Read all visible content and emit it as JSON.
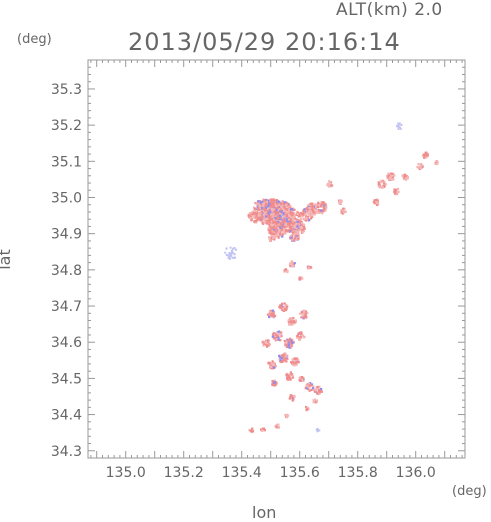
{
  "header": {
    "altitude": "ALT(km) 2.0",
    "timestamp": "2013/05/29 20:16:14"
  },
  "chart_data": {
    "type": "scatter",
    "title": "2013/05/29 20:16:14",
    "xlabel": "lon",
    "ylabel": "lat",
    "x_unit": "(deg)",
    "y_unit": "(deg)",
    "xlim": [
      134.87,
      136.17
    ],
    "ylim": [
      34.28,
      35.38
    ],
    "x_ticks": [
      "135.0",
      "135.2",
      "135.4",
      "135.6",
      "135.8",
      "136.0"
    ],
    "y_ticks": [
      "34.3",
      "34.4",
      "34.5",
      "34.6",
      "34.7",
      "34.8",
      "34.9",
      "35.0",
      "35.1",
      "35.2",
      "35.3"
    ],
    "grid": false,
    "colors": {
      "positive": "#f08c8c",
      "positive_light": "#f4b8b8",
      "negative": "#8c8cf0",
      "negative_light": "#c4c4f4"
    },
    "series": [
      {
        "values": [
          [
            135.5,
            34.96,
            14,
            4
          ],
          [
            135.53,
            34.955,
            14,
            3
          ],
          [
            135.47,
            34.97,
            10,
            3
          ],
          [
            135.56,
            34.94,
            12,
            3
          ],
          [
            135.44,
            34.95,
            6,
            1
          ],
          [
            135.52,
            34.915,
            9,
            2
          ],
          [
            135.59,
            34.92,
            7,
            2
          ],
          [
            135.62,
            34.955,
            6,
            2
          ],
          [
            135.64,
            34.97,
            6,
            1
          ],
          [
            135.67,
            34.975,
            6,
            1
          ],
          [
            135.58,
            34.895,
            5,
            1
          ],
          [
            135.5,
            34.89,
            3,
            1
          ],
          [
            135.745,
            34.965,
            3,
            0
          ],
          [
            135.735,
            34.99,
            2,
            0
          ],
          [
            135.7,
            35.04,
            3,
            0
          ],
          [
            135.86,
            34.99,
            3,
            0
          ],
          [
            135.88,
            35.04,
            4,
            0
          ],
          [
            135.91,
            35.06,
            4,
            0
          ],
          [
            135.93,
            35.02,
            3,
            0
          ],
          [
            135.96,
            35.06,
            3,
            0
          ],
          [
            136.01,
            35.09,
            3,
            0
          ],
          [
            136.03,
            35.12,
            3,
            0
          ],
          [
            136.07,
            35.1,
            2,
            0
          ],
          [
            135.57,
            34.82,
            3,
            1
          ],
          [
            135.6,
            34.78,
            2,
            1
          ],
          [
            135.55,
            34.8,
            2,
            0
          ],
          [
            135.63,
            34.81,
            2,
            1
          ],
          [
            135.54,
            34.7,
            4,
            2
          ],
          [
            135.5,
            34.68,
            4,
            2
          ],
          [
            135.57,
            34.66,
            4,
            2
          ],
          [
            135.61,
            34.68,
            4,
            2
          ],
          [
            135.52,
            34.62,
            5,
            3
          ],
          [
            135.56,
            34.6,
            5,
            3
          ],
          [
            135.48,
            34.6,
            4,
            2
          ],
          [
            135.6,
            34.62,
            4,
            2
          ],
          [
            135.54,
            34.56,
            5,
            3
          ],
          [
            135.5,
            34.54,
            4,
            2
          ],
          [
            135.58,
            34.55,
            4,
            2
          ],
          [
            135.56,
            34.51,
            4,
            2
          ],
          [
            135.51,
            34.49,
            3,
            2
          ],
          [
            135.6,
            34.5,
            3,
            2
          ],
          [
            135.63,
            34.48,
            4,
            2
          ],
          [
            135.66,
            34.47,
            4,
            2
          ],
          [
            135.65,
            34.44,
            2,
            1
          ],
          [
            135.62,
            34.42,
            2,
            1
          ],
          [
            135.57,
            34.45,
            3,
            1
          ],
          [
            135.55,
            34.4,
            2,
            1
          ],
          [
            135.52,
            34.37,
            2,
            1
          ],
          [
            135.47,
            34.36,
            2,
            1
          ],
          [
            135.43,
            34.36,
            2,
            0
          ]
        ]
      }
    ]
  }
}
